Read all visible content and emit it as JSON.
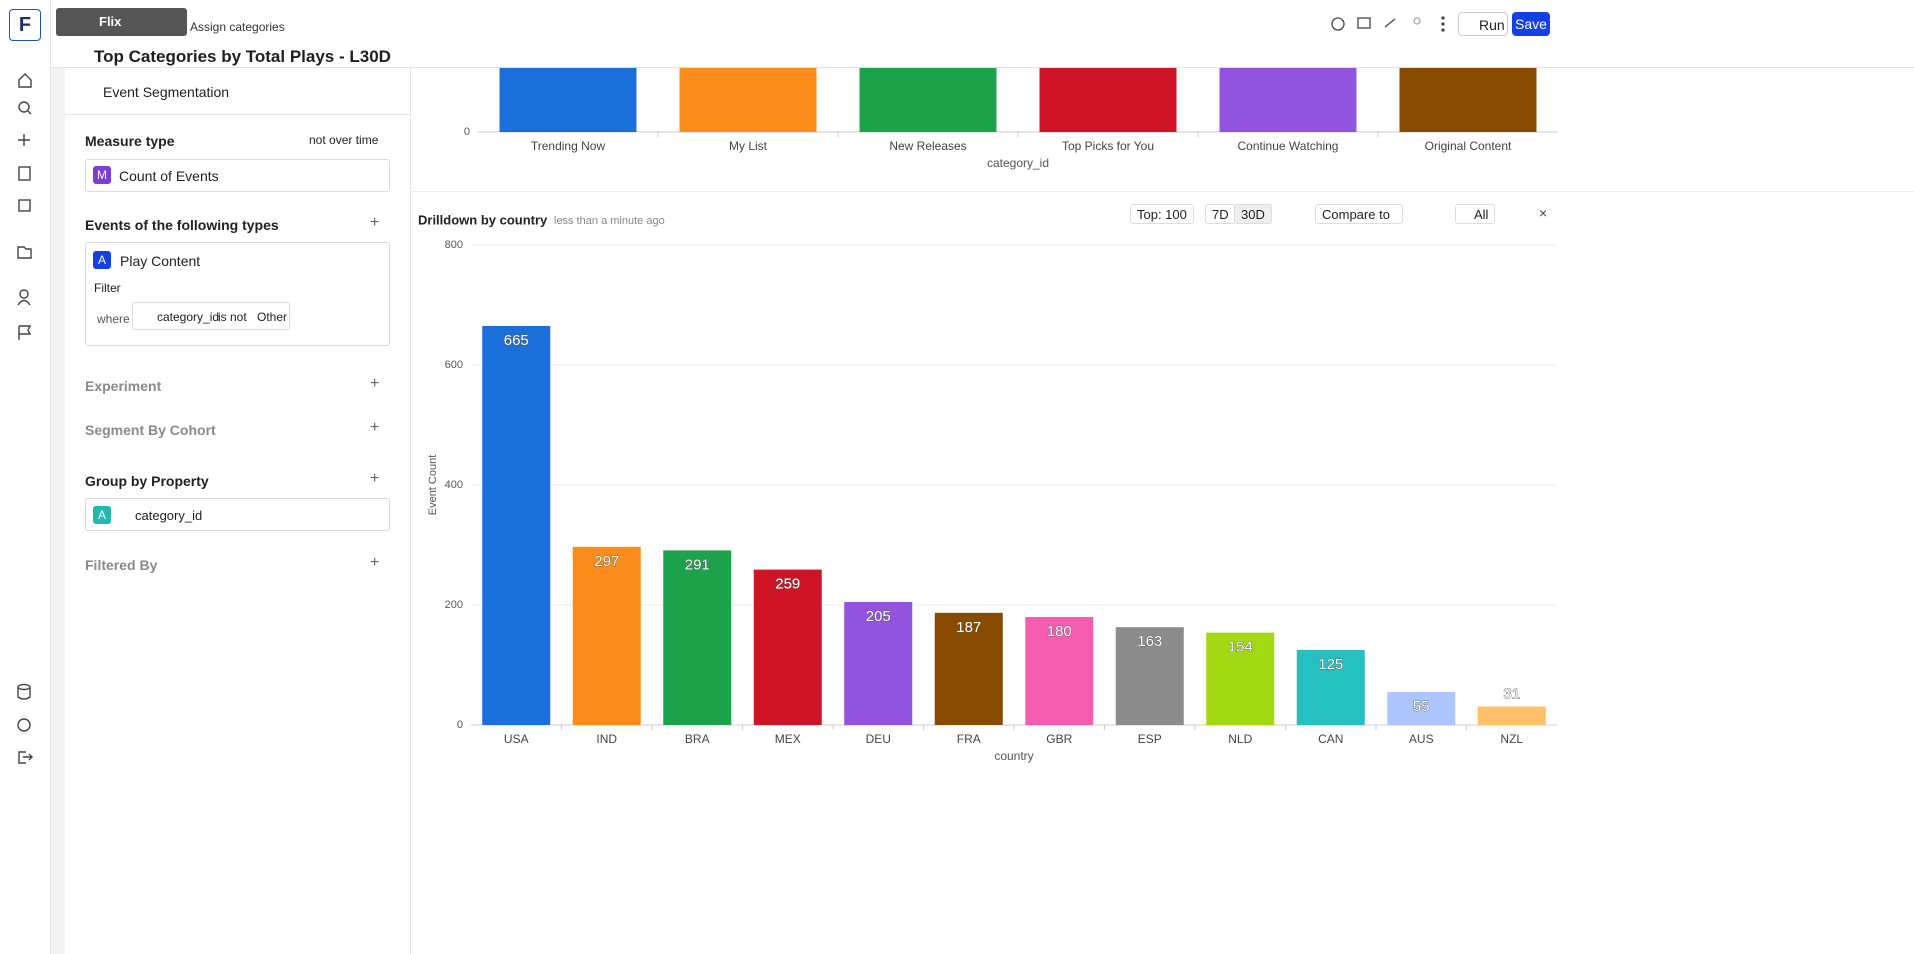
{
  "nav": {
    "logo": "F",
    "tooltip": "Flix"
  },
  "header": {
    "breadcrumb": "Assign categories",
    "title": "Top Categories by Total Plays - L30D",
    "run": "Run",
    "save": "Save"
  },
  "sidebar": {
    "mode": "Event Segmentation",
    "measure_label": "Measure type",
    "measure_time": "not over time",
    "measure_badge": "M",
    "measure": "Count of Events",
    "events_label": "Events of the following types",
    "event_badge": "A",
    "event": "Play Content",
    "filter": "Filter",
    "where": "where",
    "filter_property": "category_id",
    "filter_operator": "is not",
    "filter_value": "Other",
    "experiment": "Experiment",
    "cohort": "Segment By Cohort",
    "group_label": "Group by Property",
    "group_badge": "A",
    "group_property": "category_id",
    "filtered_by": "Filtered By"
  },
  "toolbar": {
    "top": "Top: 100",
    "range_7d": "7D",
    "range_30d": "30D",
    "compare": "Compare to",
    "visibility": "All"
  },
  "chart_data": [
    {
      "type": "bar",
      "categories": [
        "Trending Now",
        "My List",
        "New Releases",
        "Top Picks for You",
        "Continue Watching",
        "Original Content"
      ],
      "colors": [
        "#1a6fdb",
        "#f98c1a",
        "#1ba24b",
        "#d01427",
        "#9254de",
        "#874b00"
      ],
      "yticks": [
        0
      ],
      "xlabel": "category_id"
    },
    {
      "type": "bar",
      "title": "Drilldown by country",
      "updated": "less than a minute ago",
      "categories": [
        "USA",
        "IND",
        "BRA",
        "MEX",
        "DEU",
        "FRA",
        "GBR",
        "ESP",
        "NLD",
        "CAN",
        "AUS",
        "NZL"
      ],
      "values": [
        665,
        297,
        291,
        259,
        205,
        187,
        180,
        163,
        154,
        125,
        55,
        31
      ],
      "colors": [
        "#1a6fdb",
        "#f98c1a",
        "#1ba24b",
        "#d01427",
        "#9254de",
        "#874b00",
        "#f55eb0",
        "#8c8c8c",
        "#a3d913",
        "#26c0c0",
        "#adc6ff",
        "#ffc069"
      ],
      "ylim": [
        0,
        800
      ],
      "yticks": [
        0,
        200,
        400,
        600,
        800
      ],
      "ylabel": "Event Count",
      "xlabel": "country",
      "grid": true
    }
  ]
}
